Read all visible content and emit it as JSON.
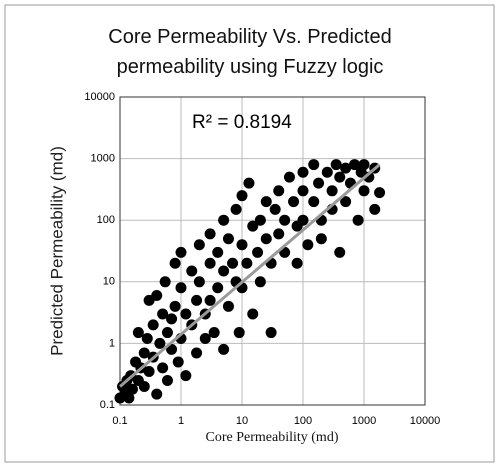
{
  "chart_data": {
    "type": "scatter",
    "title": "Core Permeability Vs. Predicted permeability using Fuzzy logic",
    "annotation": "R² = 0.8194",
    "xlabel": "Core Permeability (md)",
    "ylabel": "Predicted Permeability (md)",
    "log_x": true,
    "log_y": true,
    "grid": true,
    "xlim": [
      0.1,
      10000
    ],
    "ylim": [
      0.1,
      10000
    ],
    "xticks": [
      0.1,
      1,
      10,
      100,
      1000,
      10000
    ],
    "yticks": [
      0.1,
      1,
      10,
      100,
      1000,
      10000
    ],
    "series": [
      {
        "color": "#000000",
        "x": [
          0.1,
          0.11,
          0.12,
          0.13,
          0.14,
          0.15,
          0.16,
          0.18,
          0.2,
          0.2,
          0.22,
          0.25,
          0.25,
          0.28,
          0.3,
          0.3,
          0.35,
          0.35,
          0.4,
          0.4,
          0.45,
          0.5,
          0.5,
          0.55,
          0.6,
          0.6,
          0.7,
          0.7,
          0.8,
          0.8,
          0.9,
          1,
          1,
          1,
          1.2,
          1.2,
          1.5,
          1.5,
          1.8,
          1.8,
          2,
          2,
          2.5,
          2.5,
          3,
          3,
          3,
          3.5,
          4,
          4,
          5,
          5,
          5,
          6,
          6,
          7,
          8,
          8,
          9,
          10,
          10,
          10,
          12,
          13,
          15,
          15,
          18,
          20,
          20,
          25,
          25,
          30,
          30,
          35,
          40,
          40,
          50,
          50,
          60,
          70,
          80,
          80,
          100,
          100,
          100,
          120,
          150,
          150,
          180,
          200,
          200,
          250,
          300,
          300,
          350,
          400,
          400,
          500,
          500,
          600,
          700,
          800,
          900,
          1000,
          1000,
          1200,
          1500,
          1800,
          1500
        ],
        "values": [
          0.13,
          0.2,
          0.15,
          0.25,
          0.13,
          0.3,
          0.18,
          0.5,
          0.25,
          1.5,
          0.4,
          0.7,
          0.2,
          1.2,
          0.35,
          5,
          2,
          0.6,
          0.15,
          6,
          1,
          3,
          0.4,
          10,
          1.5,
          0.25,
          2.5,
          0.8,
          20,
          4,
          0.5,
          1.2,
          8,
          30,
          3,
          0.3,
          15,
          2,
          5,
          0.7,
          40,
          10,
          3,
          1.2,
          60,
          20,
          5,
          1.5,
          8,
          30,
          100,
          15,
          0.8,
          4,
          50,
          20,
          10,
          150,
          1.5,
          40,
          8,
          250,
          20,
          400,
          80,
          3,
          30,
          100,
          10,
          200,
          50,
          20,
          1.5,
          150,
          60,
          300,
          100,
          30,
          500,
          200,
          80,
          20,
          300,
          100,
          600,
          40,
          200,
          800,
          400,
          100,
          50,
          600,
          300,
          150,
          800,
          500,
          30,
          200,
          700,
          400,
          800,
          100,
          600,
          300,
          800,
          500,
          700,
          280,
          150
        ]
      },
      {
        "color": "#9a9a9a",
        "x": [
          0.1,
          1800
        ],
        "values": [
          0.2,
          800
        ]
      }
    ]
  }
}
